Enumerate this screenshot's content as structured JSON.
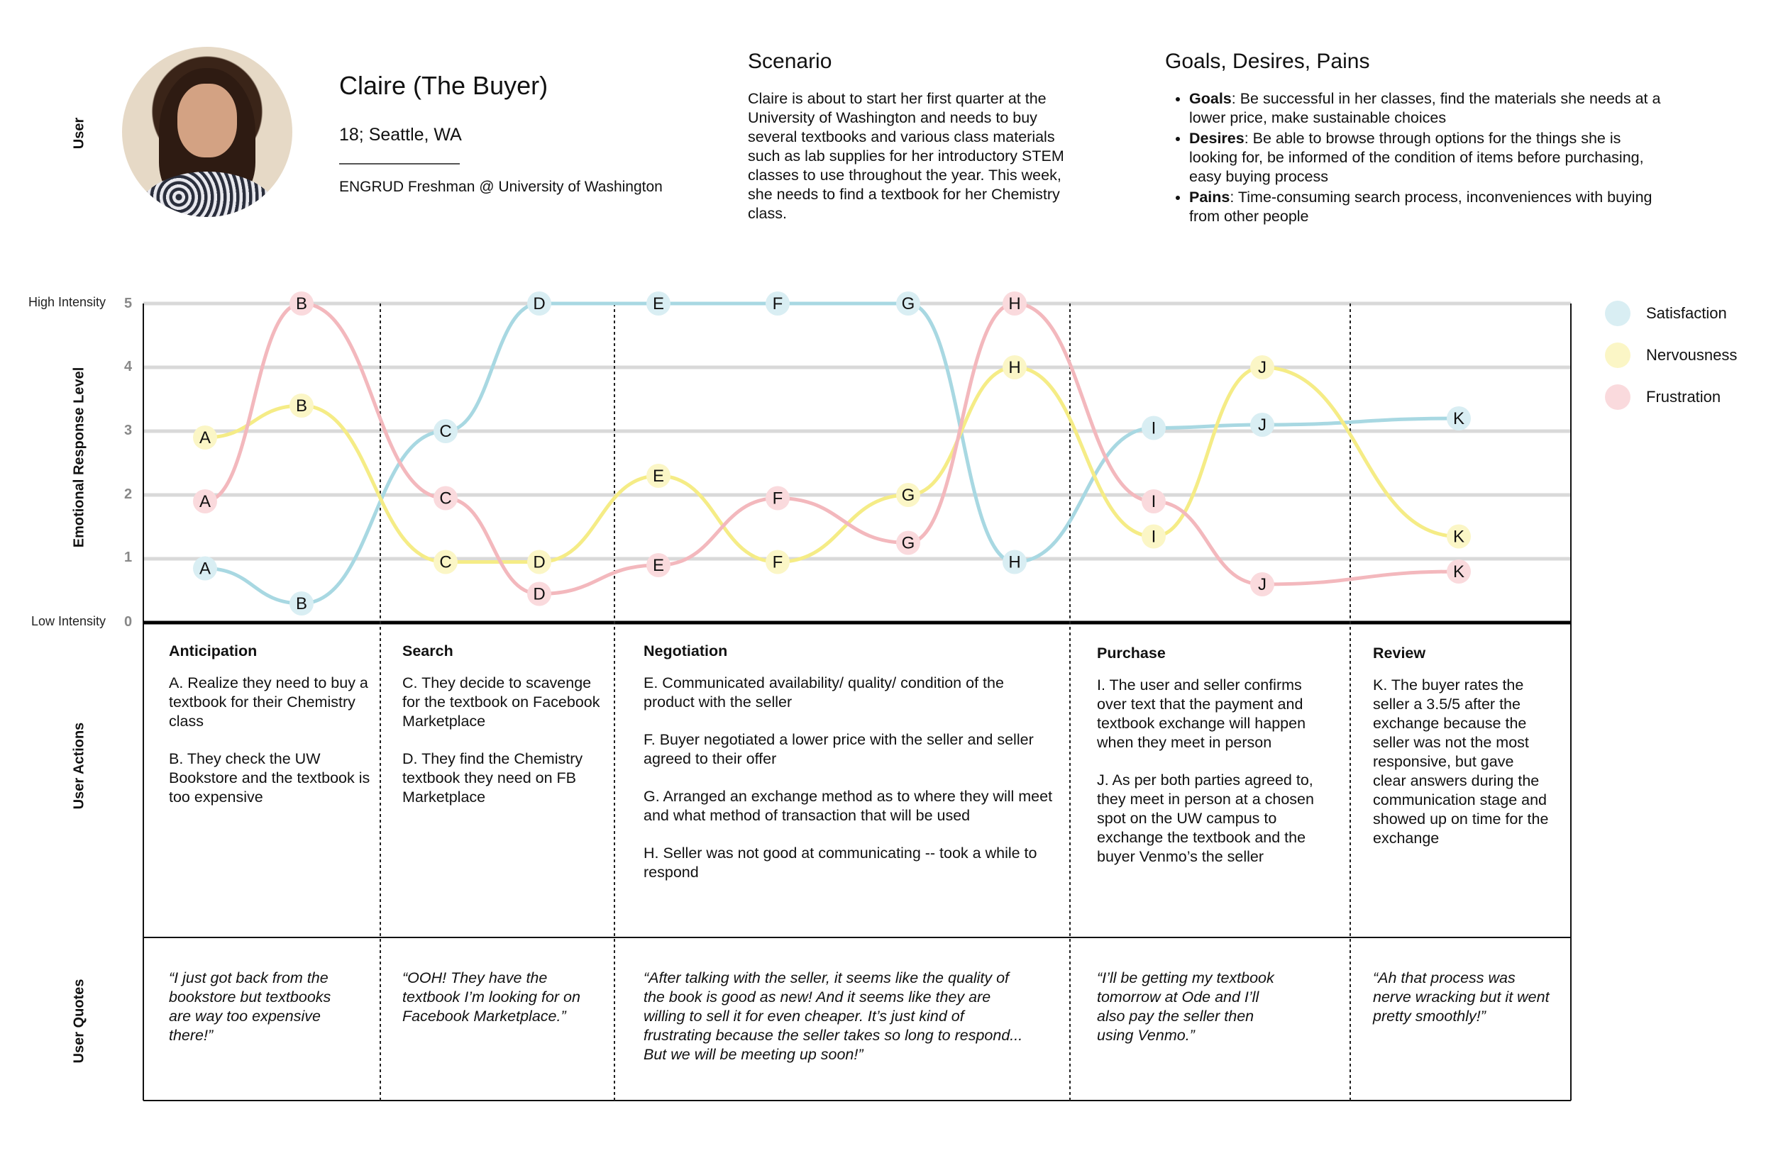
{
  "user": {
    "section_label": "User",
    "name": "Claire (The Buyer)",
    "age_location": "18; Seattle, WA",
    "major": "ENGRUD Freshman @ University of Washington"
  },
  "scenario": {
    "title": "Scenario",
    "text": "Claire is about to start her first quarter at the University of Washington and needs to buy several textbooks and various class materials such as lab supplies for her introductory STEM classes to use throughout the year. This week, she needs to find a textbook for her Chemistry class."
  },
  "goals": {
    "title": "Goals, Desires, Pains",
    "items": [
      {
        "label": "Goals",
        "text": ": Be successful in her classes, find the materials she needs at a lower price, make sustainable choices"
      },
      {
        "label": "Desires",
        "text": ": Be able to browse through options for the things she is looking for, be informed of the condition of items before purchasing, easy buying process"
      },
      {
        "label": "Pains",
        "text": ": Time-consuming search process, inconveniences with buying from other people"
      }
    ]
  },
  "colors": {
    "satisfaction": "#a8d8e2",
    "nervousness": "#f5ec86",
    "frustration": "#f3b8bd",
    "satisfaction_dot": "#d9eef3",
    "nervousness_dot": "#fbf6c6",
    "frustration_dot": "#fadadd",
    "grid": "#d9d9d9"
  },
  "chart_data": {
    "type": "line",
    "ylabel": "Emotional Response Level",
    "high_label": "High Intensity",
    "low_label": "Low Intensity",
    "ylim": [
      0,
      5
    ],
    "yticks": [
      "0",
      "1",
      "2",
      "3",
      "4",
      "5"
    ],
    "series": [
      {
        "name": "Satisfaction",
        "key": "satisfaction",
        "points": [
          {
            "label": "A",
            "step": 1.0,
            "value": 0.85
          },
          {
            "label": "B",
            "step": 2.5,
            "value": 0.3
          },
          {
            "label": "C",
            "step": 4.0,
            "value": 3.0
          },
          {
            "label": "D",
            "step": 4.7,
            "value": 5.0
          },
          {
            "label": "E",
            "step": 5.4,
            "value": 5.0
          },
          {
            "label": "F",
            "step": 6.1,
            "value": 5.0
          },
          {
            "label": "G",
            "step": 7.0,
            "value": 5.0
          },
          {
            "label": "H",
            "step": 8.0,
            "value": 0.95
          },
          {
            "label": "I",
            "step": 9.0,
            "value": 3.05
          },
          {
            "label": "J",
            "step": 10.0,
            "value": 3.1
          },
          {
            "label": "K",
            "step": 11.0,
            "value": 3.2
          }
        ]
      },
      {
        "name": "Nervousness",
        "key": "nervousness",
        "points": [
          {
            "label": "A",
            "step": 1.0,
            "value": 2.9
          },
          {
            "label": "B",
            "step": 2.5,
            "value": 3.4
          },
          {
            "label": "C",
            "step": 4.0,
            "value": 0.95
          },
          {
            "label": "D",
            "step": 4.7,
            "value": 0.95
          },
          {
            "label": "E",
            "step": 5.4,
            "value": 2.3
          },
          {
            "label": "F",
            "step": 6.1,
            "value": 0.95
          },
          {
            "label": "G",
            "step": 7.0,
            "value": 2.0
          },
          {
            "label": "H",
            "step": 8.0,
            "value": 4.0
          },
          {
            "label": "I",
            "step": 9.0,
            "value": 1.35
          },
          {
            "label": "J",
            "step": 10.0,
            "value": 4.0
          },
          {
            "label": "K",
            "step": 11.0,
            "value": 1.35
          }
        ]
      },
      {
        "name": "Frustration",
        "key": "frustration",
        "points": [
          {
            "label": "A",
            "step": 1.0,
            "value": 1.9
          },
          {
            "label": "B",
            "step": 2.5,
            "value": 5.0
          },
          {
            "label": "C",
            "step": 4.0,
            "value": 1.95
          },
          {
            "label": "D",
            "step": 4.7,
            "value": 0.45
          },
          {
            "label": "E",
            "step": 5.4,
            "value": 0.9
          },
          {
            "label": "F",
            "step": 6.1,
            "value": 1.95
          },
          {
            "label": "G",
            "step": 7.0,
            "value": 1.25
          },
          {
            "label": "H",
            "step": 8.0,
            "value": 5.0
          },
          {
            "label": "I",
            "step": 9.0,
            "value": 1.9
          },
          {
            "label": "J",
            "step": 10.0,
            "value": 0.6
          },
          {
            "label": "K",
            "step": 11.0,
            "value": 0.8
          }
        ]
      }
    ]
  },
  "legend": [
    "Satisfaction",
    "Nervousness",
    "Frustration"
  ],
  "row_labels": {
    "actions": "User Actions",
    "quotes": "User Quotes"
  },
  "stages": [
    {
      "title": "Anticipation",
      "actions": [
        "A. Realize they need to buy a textbook for their Chemistry class",
        "B. They check the UW Bookstore and the textbook is too expensive"
      ],
      "quote": "“I just got back from the bookstore but textbooks are way too expensive there!”"
    },
    {
      "title": "Search",
      "actions": [
        "C. They decide to scavenge for the textbook on Facebook Marketplace",
        "D. They find the Chemistry textbook they need on FB Marketplace"
      ],
      "quote": "“OOH! They have the textbook I’m looking for on Facebook Marketplace.”"
    },
    {
      "title": "Negotiation",
      "actions": [
        "E. Communicated availability/ quality/ condition of the product with the seller",
        "F. Buyer negotiated a lower price with the seller and seller agreed to their offer",
        "G. Arranged an exchange method as to where they will meet and what method of transaction that will be used",
        "H. Seller was not good at communicating -- took a while to respond"
      ],
      "quote": "“After talking with the seller, it seems like the quality of the book is good as new! And it seems like they are willing to sell it for even cheaper. It’s just kind of frustrating because the seller takes so long to respond... But we will be meeting up soon!”"
    },
    {
      "title": "Purchase",
      "actions": [
        "I. The user and seller confirms over text that the payment and textbook exchange will happen when they meet in person",
        "J. As per both parties agreed to, they meet in person at a chosen spot on the UW campus to exchange the textbook and the buyer Venmo’s the seller"
      ],
      "quote": "“I’ll be getting my textbook tomorrow at Ode and I’ll also pay the seller then using Venmo.”"
    },
    {
      "title": "Review",
      "actions": [
        "K. The buyer rates the seller a 3.5/5 after the exchange because the seller was not the most responsive, but gave clear answers during the communication stage and showed up on time for the exchange"
      ],
      "quote": "“Ah that process was nerve wracking but it went pretty smoothly!”"
    }
  ]
}
